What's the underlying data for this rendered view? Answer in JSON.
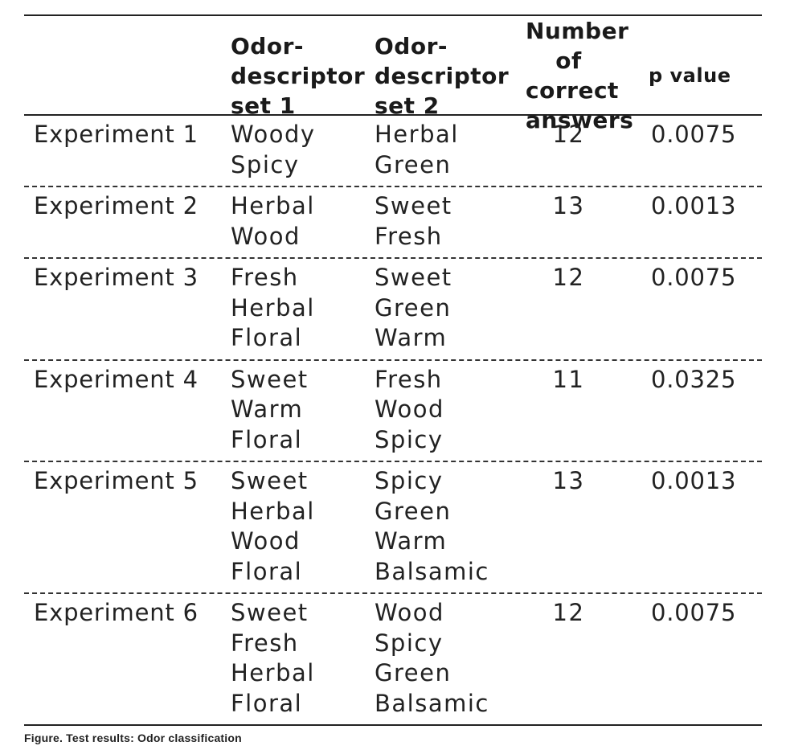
{
  "table": {
    "headers": [
      "",
      "Odor-\ndescriptor\nset 1",
      "Odor-\ndescriptor\nset 2",
      "Number\nof correct\nanswers",
      "p value"
    ],
    "rows": [
      {
        "label": "Experiment 1",
        "set1": [
          "Woody",
          "Spicy"
        ],
        "set2": [
          "Herbal",
          "Green"
        ],
        "correct": "12",
        "p": "0.0075"
      },
      {
        "label": "Experiment 2",
        "set1": [
          "Herbal",
          "Wood"
        ],
        "set2": [
          "Sweet",
          "Fresh"
        ],
        "correct": "13",
        "p": "0.0013"
      },
      {
        "label": "Experiment 3",
        "set1": [
          "Fresh",
          "Herbal",
          "Floral"
        ],
        "set2": [
          "Sweet",
          "Green",
          "Warm"
        ],
        "correct": "12",
        "p": "0.0075"
      },
      {
        "label": "Experiment 4",
        "set1": [
          "Sweet",
          "Warm",
          "Floral"
        ],
        "set2": [
          "Fresh",
          "Wood",
          "Spicy"
        ],
        "correct": "11",
        "p": "0.0325"
      },
      {
        "label": "Experiment 5",
        "set1": [
          "Sweet",
          "Herbal",
          "Wood",
          "Floral"
        ],
        "set2": [
          "Spicy",
          "Green",
          "Warm",
          "Balsamic"
        ],
        "correct": "13",
        "p": "0.0013"
      },
      {
        "label": "Experiment 6",
        "set1": [
          "Sweet",
          "Fresh",
          "Herbal",
          "Floral"
        ],
        "set2": [
          "Wood",
          "Spicy",
          "Green",
          "Balsamic"
        ],
        "correct": "12",
        "p": "0.0075"
      }
    ]
  },
  "caption": "Figure. Test results: Odor classification"
}
